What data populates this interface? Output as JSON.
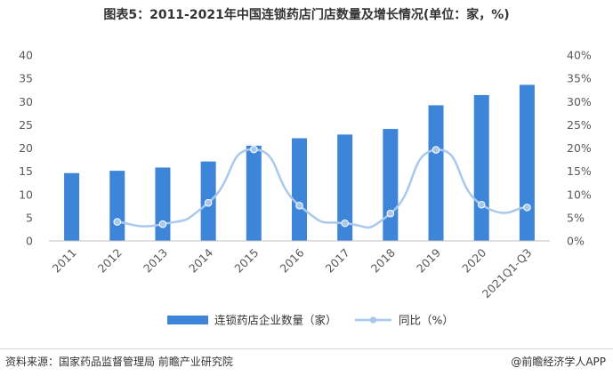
{
  "chart_data": {
    "type": "bar",
    "title": "图表5：2011-2021年中国连锁药店门店数量及增长情况(单位：家，%)",
    "categories": [
      "2011",
      "2012",
      "2013",
      "2014",
      "2015",
      "2016",
      "2017",
      "2018",
      "2019",
      "2020",
      "2021Q1-Q3"
    ],
    "series": [
      {
        "name": "连锁药店企业数量（家）",
        "type": "bar",
        "axis": "left",
        "color": "#3d85d8",
        "values": [
          14.6,
          15.1,
          15.8,
          17.1,
          20.5,
          22.1,
          22.9,
          24.1,
          29.2,
          31.4,
          33.6
        ]
      },
      {
        "name": "同比（%）",
        "type": "line",
        "axis": "right",
        "color": "#a9c8ee",
        "values": [
          null,
          4.1,
          3.6,
          8.2,
          19.7,
          7.6,
          3.8,
          5.9,
          19.6,
          7.8,
          7.2
        ]
      }
    ],
    "ylim_left": [
      0,
      40
    ],
    "yticks_left": [
      "0",
      "5",
      "10",
      "15",
      "20",
      "25",
      "30",
      "35",
      "40"
    ],
    "ylim_right": [
      0,
      40
    ],
    "yticks_right": [
      "0%",
      "5%",
      "10%",
      "15%",
      "20%",
      "25%",
      "30%",
      "35%",
      "40%"
    ],
    "grid": false,
    "legend_position": "bottom"
  },
  "footer": {
    "source": "资料来源：国家药品监督管理局 前瞻产业研究院",
    "credit": "@前瞻经济学人APP"
  },
  "colors": {
    "bar": "#3d85d8",
    "line": "#a9c8ee",
    "axis": "#bfbfbf",
    "text": "#595959"
  }
}
